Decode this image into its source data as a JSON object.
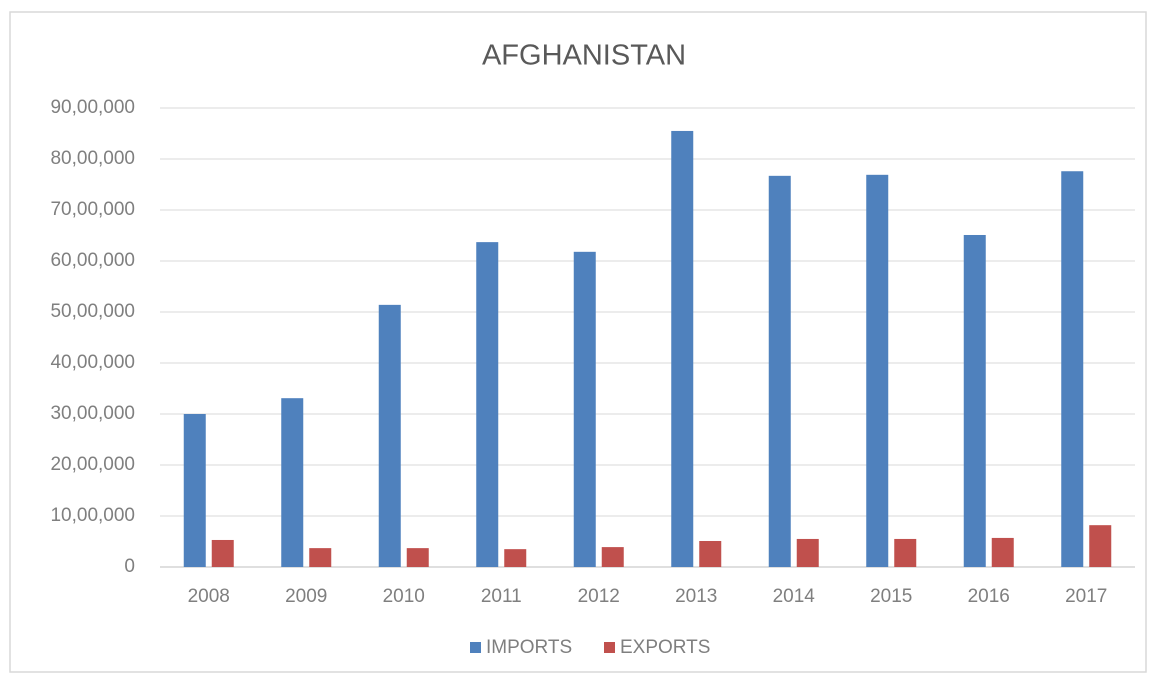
{
  "chart_data": {
    "type": "bar",
    "title": "AFGHANISTAN",
    "categories": [
      "2008",
      "2009",
      "2010",
      "2011",
      "2012",
      "2013",
      "2014",
      "2015",
      "2016",
      "2017"
    ],
    "series": [
      {
        "name": "IMPORTS",
        "color": "#4f81bd",
        "values": [
          3000000,
          3310000,
          5140000,
          6370000,
          6180000,
          8550000,
          7670000,
          7690000,
          6510000,
          7760000
        ]
      },
      {
        "name": "EXPORTS",
        "color": "#c0504d",
        "values": [
          530000,
          370000,
          370000,
          350000,
          390000,
          510000,
          550000,
          550000,
          570000,
          820000
        ]
      }
    ],
    "ylim": [
      0,
      9000000
    ],
    "yticks": [
      0,
      {
        "value": 1000000,
        "label": "10,00,000"
      },
      {
        "value": 2000000,
        "label": "20,00,000"
      },
      {
        "value": 3000000,
        "label": "30,00,000"
      },
      {
        "value": 4000000,
        "label": "40,00,000"
      },
      {
        "value": 5000000,
        "label": "50,00,000"
      },
      {
        "value": 6000000,
        "label": "60,00,000"
      },
      {
        "value": 7000000,
        "label": "70,00,000"
      },
      {
        "value": 8000000,
        "label": "80,00,000"
      },
      {
        "value": 9000000,
        "label": "90,00,000"
      }
    ],
    "grid": true,
    "legend": "bottom"
  }
}
